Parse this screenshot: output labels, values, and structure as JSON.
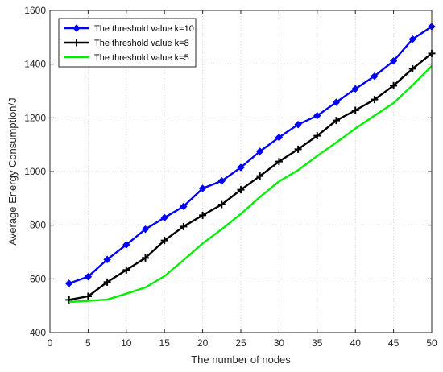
{
  "chart_data": {
    "type": "line",
    "xlabel": "The  number of nodes",
    "ylabel": "Average Energy Consumption/J",
    "xlim": [
      0,
      50
    ],
    "ylim": [
      400,
      1600
    ],
    "xticks": [
      0,
      5,
      10,
      15,
      20,
      25,
      30,
      35,
      40,
      45,
      50
    ],
    "yticks": [
      400,
      600,
      800,
      1000,
      1200,
      1400,
      1600
    ],
    "grid": true,
    "legend_position": "top-left",
    "series": [
      {
        "name": "The threshold value k=10",
        "color": "#0000ff",
        "marker": "diamond",
        "x": [
          2.5,
          5,
          7.5,
          10,
          12.5,
          15,
          17.5,
          20,
          22.5,
          25,
          27.5,
          30,
          32.5,
          35,
          37.5,
          40,
          42.5,
          45,
          47.5,
          50
        ],
        "values": [
          583,
          608,
          672,
          727,
          785,
          828,
          870,
          937,
          965,
          1015,
          1075,
          1127,
          1175,
          1208,
          1258,
          1308,
          1355,
          1412,
          1493,
          1540
        ]
      },
      {
        "name": "The threshold value k=8",
        "color": "#000000",
        "marker": "plus",
        "x": [
          2.5,
          5,
          7.5,
          10,
          12.5,
          15,
          17.5,
          20,
          22.5,
          25,
          27.5,
          30,
          32.5,
          35,
          37.5,
          40,
          42.5,
          45,
          47.5,
          50
        ],
        "values": [
          522,
          535,
          588,
          633,
          678,
          743,
          795,
          837,
          877,
          932,
          983,
          1037,
          1083,
          1133,
          1190,
          1228,
          1268,
          1320,
          1383,
          1440
        ]
      },
      {
        "name": "The threshold value k=5",
        "color": "#00ee00",
        "marker": "none",
        "x": [
          2.5,
          5,
          7.5,
          10,
          12.5,
          15,
          17.5,
          20,
          22.5,
          25,
          27.5,
          30,
          32.5,
          35,
          37.5,
          40,
          42.5,
          45,
          47.5,
          50
        ],
        "values": [
          514,
          518,
          523,
          545,
          568,
          610,
          670,
          732,
          785,
          842,
          905,
          963,
          1005,
          1058,
          1108,
          1160,
          1208,
          1255,
          1322,
          1393
        ]
      }
    ]
  }
}
